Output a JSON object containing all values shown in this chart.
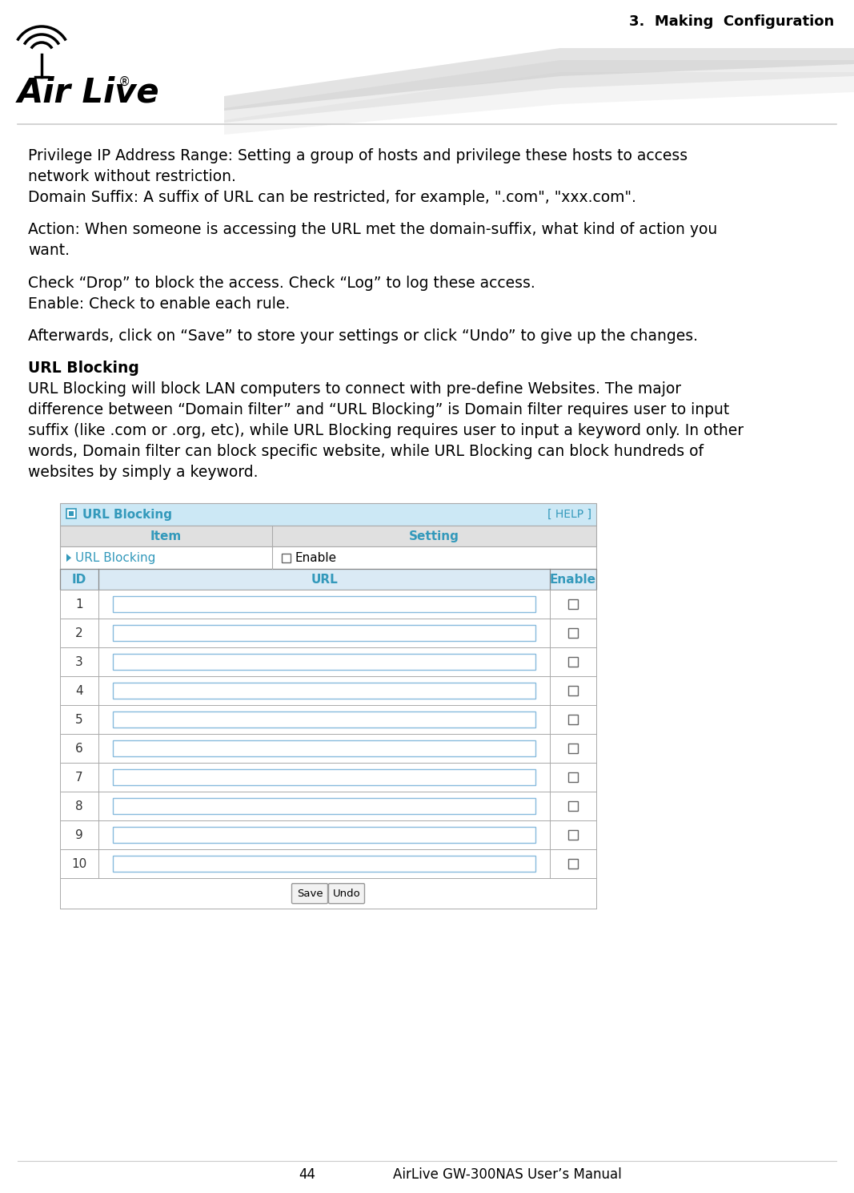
{
  "page_title": "3.  Making  Configuration",
  "page_number": "44",
  "footer_right": "AirLive GW-300NAS User’s Manual",
  "body_paragraphs": [
    {
      "lines": [
        "Privilege IP Address Range: Setting a group of hosts and privilege these hosts to access",
        "network without restriction."
      ],
      "bold_prefix": ""
    },
    {
      "lines": [
        "Domain Suffix: A suffix of URL can be restricted, for example, \".com\", \"xxx.com\"."
      ],
      "bold_prefix": ""
    },
    {
      "lines": [
        ""
      ],
      "bold_prefix": ""
    },
    {
      "lines": [
        "Action: When someone is accessing the URL met the domain-suffix, what kind of action you",
        "want."
      ],
      "bold_prefix": ""
    },
    {
      "lines": [
        ""
      ],
      "bold_prefix": ""
    },
    {
      "lines": [
        "Check “Drop” to block the access. Check “Log” to log these access.",
        "Enable: Check to enable each rule."
      ],
      "bold_prefix": ""
    },
    {
      "lines": [
        ""
      ],
      "bold_prefix": ""
    },
    {
      "lines": [
        "Afterwards, click on “Save” to store your settings or click “Undo” to give up the changes."
      ],
      "bold_prefix": ""
    },
    {
      "lines": [
        ""
      ],
      "bold_prefix": ""
    },
    {
      "lines": [
        "URL Blocking"
      ],
      "bold": true
    },
    {
      "lines": [
        "URL Blocking will block LAN computers to connect with pre-define Websites. The major",
        "difference between “Domain filter” and “URL Blocking” is Domain filter requires user to input",
        "suffix (like .com or .org, etc), while URL Blocking requires user to input a keyword only. In other",
        "words, Domain filter can block specific website, while URL Blocking can block hundreds of",
        "websites by simply a keyword."
      ],
      "bold_prefix": ""
    }
  ],
  "table_title": "URL Blocking",
  "help_text": "[ HELP ]",
  "col_item": "Item",
  "col_setting": "Setting",
  "sub_label": "URL Blocking",
  "sub_enable": "Enable",
  "data_headers": [
    "ID",
    "URL",
    "Enable"
  ],
  "num_rows": 10,
  "save_btn": "Save",
  "undo_btn": "Undo",
  "bg_color": "#ffffff",
  "title_bar_color": "#cce8f5",
  "col_header_bg": "#e0e0e0",
  "sub_row_bg": "#ffffff",
  "data_header_bg": "#daeaf5",
  "data_row_bg": "#ffffff",
  "teal_text": "#3399bb",
  "dark_text": "#333333",
  "border_dark": "#888888",
  "border_light": "#aaaaaa",
  "input_border": "#88bbdd",
  "swoosh_color": "#cccccc"
}
